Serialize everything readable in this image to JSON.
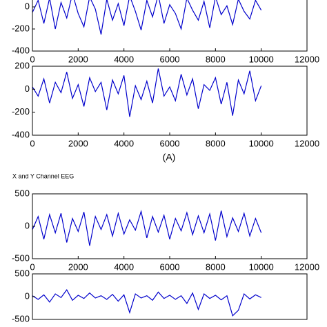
{
  "chart_data": [
    {
      "type": "line",
      "x": [
        0,
        250,
        500,
        750,
        1000,
        1250,
        1500,
        1750,
        2000,
        2250,
        2500,
        2750,
        3000,
        3250,
        3500,
        3750,
        4000,
        4250,
        4500,
        4750,
        5000,
        5250,
        5500,
        5750,
        6000,
        6250,
        6500,
        6750,
        7000,
        7250,
        7500,
        7750,
        8000,
        8250,
        8500,
        8750,
        9000,
        9250,
        9500,
        9750,
        10000
      ],
      "series": [
        {
          "color": "#0000cc",
          "values": [
            -50,
            60,
            -150,
            80,
            -200,
            40,
            -100,
            120,
            -60,
            -180,
            90,
            -20,
            -250,
            70,
            -120,
            30,
            -170,
            100,
            -40,
            -210,
            60,
            -90,
            110,
            -150,
            20,
            -60,
            -200,
            80,
            -30,
            -120,
            50,
            -190,
            90,
            -70,
            10,
            -160,
            70,
            -40,
            -110,
            60,
            -30
          ]
        }
      ],
      "xlim": [
        0,
        12000
      ],
      "xticks": [
        0,
        2000,
        4000,
        6000,
        8000,
        10000,
        12000
      ],
      "ylim": [
        -400,
        200
      ],
      "yticks": [
        -400,
        -200,
        0
      ]
    },
    {
      "type": "line",
      "xlabel": "(A)",
      "x": [
        0,
        250,
        500,
        750,
        1000,
        1250,
        1500,
        1750,
        2000,
        2250,
        2500,
        2750,
        3000,
        3250,
        3500,
        3750,
        4000,
        4250,
        4500,
        4750,
        5000,
        5250,
        5500,
        5750,
        6000,
        6250,
        6500,
        6750,
        7000,
        7250,
        7500,
        7750,
        8000,
        8250,
        8500,
        8750,
        9000,
        9250,
        9500,
        9750,
        10000
      ],
      "series": [
        {
          "color": "#0000cc",
          "values": [
            20,
            -60,
            90,
            -120,
            60,
            -30,
            150,
            -80,
            40,
            -150,
            100,
            -20,
            60,
            -180,
            80,
            -40,
            120,
            -240,
            30,
            -90,
            70,
            -120,
            180,
            -60,
            20,
            -100,
            130,
            -50,
            90,
            -170,
            40,
            -10,
            100,
            -130,
            60,
            -230,
            80,
            -40,
            160,
            -100,
            30
          ]
        }
      ],
      "xlim": [
        0,
        12000
      ],
      "xticks": [
        0,
        2000,
        4000,
        6000,
        8000,
        10000,
        12000
      ],
      "ylim": [
        -400,
        200
      ],
      "yticks": [
        -400,
        -200,
        0,
        200
      ]
    },
    {
      "type": "line",
      "title": "X and Y Channel EEG",
      "x": [
        0,
        250,
        500,
        750,
        1000,
        1250,
        1500,
        1750,
        2000,
        2250,
        2500,
        2750,
        3000,
        3250,
        3500,
        3750,
        4000,
        4250,
        4500,
        4750,
        5000,
        5250,
        5500,
        5750,
        6000,
        6250,
        6500,
        6750,
        7000,
        7250,
        7500,
        7750,
        8000,
        8250,
        8500,
        8750,
        9000,
        9250,
        9500,
        9750,
        10000
      ],
      "series": [
        {
          "color": "#0000cc",
          "values": [
            -50,
            150,
            -200,
            180,
            -100,
            200,
            -250,
            120,
            -80,
            220,
            -300,
            150,
            -50,
            180,
            -150,
            200,
            -120,
            100,
            -60,
            230,
            -180,
            150,
            -90,
            170,
            -200,
            120,
            -70,
            210,
            -130,
            160,
            -100,
            190,
            -220,
            240,
            -160,
            130,
            -80,
            200,
            -150,
            120,
            -100
          ]
        }
      ],
      "xlim": [
        0,
        12000
      ],
      "xticks": [
        0,
        2000,
        4000,
        6000,
        8000,
        10000,
        12000
      ],
      "ylim": [
        -500,
        500
      ],
      "yticks": [
        -500,
        0,
        500
      ]
    },
    {
      "type": "line",
      "x": [
        0,
        250,
        500,
        750,
        1000,
        1250,
        1500,
        1750,
        2000,
        2250,
        2500,
        2750,
        3000,
        3250,
        3500,
        3750,
        4000,
        4250,
        4500,
        4750,
        5000,
        5250,
        5500,
        5750,
        6000,
        6250,
        6500,
        6750,
        7000,
        7250,
        7500,
        7750,
        8000,
        8250,
        8500,
        8750,
        9000,
        9250,
        9500,
        9750,
        10000
      ],
      "series": [
        {
          "color": "#0000cc",
          "values": [
            20,
            -60,
            40,
            -120,
            60,
            -20,
            150,
            -80,
            30,
            -40,
            80,
            -30,
            20,
            -60,
            50,
            -100,
            40,
            -350,
            60,
            -30,
            20,
            -80,
            100,
            -40,
            30,
            -60,
            20,
            -150,
            80,
            -280,
            60,
            -40,
            30,
            -70,
            20,
            -420,
            -300,
            60,
            -50,
            40,
            -20
          ]
        }
      ],
      "xlim": [
        0,
        12000
      ],
      "yticks": [
        -500,
        0,
        500
      ],
      "ylim": [
        -500,
        500
      ]
    }
  ]
}
